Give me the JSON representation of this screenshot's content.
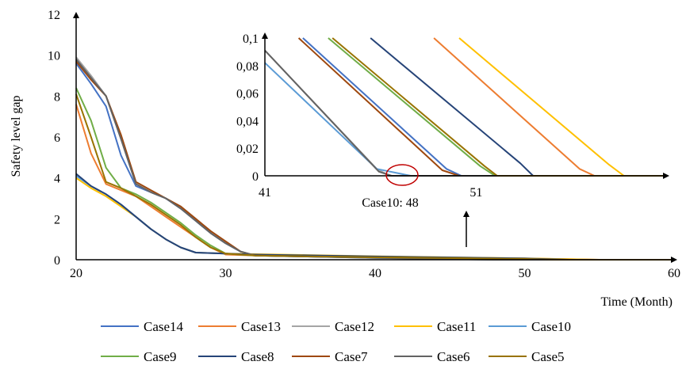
{
  "chart_data": [
    {
      "type": "line",
      "xlabel": "Time (Month)",
      "ylabel": "Safety level gap",
      "xlim": [
        20,
        60
      ],
      "ylim": [
        0,
        12
      ],
      "x_ticks": [
        "20",
        "30",
        "40",
        "50",
        "60"
      ],
      "y_ticks": [
        "0",
        "2",
        "4",
        "6",
        "8",
        "10",
        "12"
      ],
      "legend_position": "bottom",
      "series": [
        {
          "name": "Case14",
          "color": "#4472C4",
          "points": [
            [
              20,
              9.6
            ],
            [
              21,
              8.6
            ],
            [
              22,
              7.5
            ],
            [
              23,
              5.1
            ],
            [
              24,
              3.6
            ],
            [
              25,
              3.3
            ],
            [
              26,
              3.0
            ],
            [
              27,
              2.5
            ],
            [
              28,
              1.9
            ],
            [
              29,
              1.3
            ],
            [
              30,
              0.8
            ],
            [
              31,
              0.4
            ],
            [
              32,
              0.2
            ],
            [
              40,
              0.12
            ],
            [
              50,
              0.04
            ],
            [
              53,
              0
            ],
            [
              60,
              0
            ]
          ]
        },
        {
          "name": "Case13",
          "color": "#ED7D31",
          "points": [
            [
              20,
              7.6
            ],
            [
              21,
              5.2
            ],
            [
              22,
              3.7
            ],
            [
              23,
              3.4
            ],
            [
              24,
              3.1
            ],
            [
              25,
              2.6
            ],
            [
              26,
              2.1
            ],
            [
              27,
              1.6
            ],
            [
              28,
              1.1
            ],
            [
              29,
              0.6
            ],
            [
              30,
              0.25
            ],
            [
              32,
              0.2
            ],
            [
              40,
              0.14
            ],
            [
              50,
              0.06
            ],
            [
              55,
              0
            ],
            [
              60,
              0
            ]
          ]
        },
        {
          "name": "Case12",
          "color": "#A5A5A5",
          "points": [
            [
              20,
              9.9
            ],
            [
              21,
              9.0
            ],
            [
              22,
              8.0
            ],
            [
              23,
              5.9
            ],
            [
              24,
              3.7
            ],
            [
              25,
              3.3
            ],
            [
              26,
              3.0
            ],
            [
              27,
              2.6
            ],
            [
              28,
              2.0
            ],
            [
              29,
              1.4
            ],
            [
              30,
              0.9
            ],
            [
              31,
              0.4
            ],
            [
              32,
              0.2
            ],
            [
              40,
              0.1
            ],
            [
              50,
              0.03
            ],
            [
              52,
              0
            ],
            [
              60,
              0
            ]
          ]
        },
        {
          "name": "Case11",
          "color": "#FFC000",
          "points": [
            [
              20,
              4.0
            ],
            [
              21,
              3.5
            ],
            [
              22,
              3.1
            ],
            [
              23,
              2.6
            ],
            [
              24,
              2.1
            ],
            [
              25,
              1.5
            ],
            [
              26,
              1.0
            ],
            [
              27,
              0.6
            ],
            [
              28,
              0.35
            ],
            [
              30,
              0.3
            ],
            [
              32,
              0.27
            ],
            [
              40,
              0.17
            ],
            [
              50,
              0.07
            ],
            [
              55,
              0
            ],
            [
              60,
              0
            ]
          ]
        },
        {
          "name": "Case10",
          "color": "#5B9BD5",
          "points": [
            [
              20,
              4.1
            ],
            [
              21,
              3.6
            ],
            [
              22,
              3.2
            ],
            [
              23,
              2.7
            ],
            [
              24,
              2.1
            ],
            [
              25,
              1.5
            ],
            [
              26,
              1.0
            ],
            [
              27,
              0.6
            ],
            [
              28,
              0.35
            ],
            [
              30,
              0.3
            ],
            [
              32,
              0.2
            ],
            [
              40,
              0.09
            ],
            [
              48,
              0
            ],
            [
              60,
              0
            ]
          ]
        },
        {
          "name": "Case9",
          "color": "#70AD47",
          "points": [
            [
              20,
              8.4
            ],
            [
              21,
              6.8
            ],
            [
              22,
              4.5
            ],
            [
              23,
              3.5
            ],
            [
              24,
              3.2
            ],
            [
              25,
              2.8
            ],
            [
              26,
              2.3
            ],
            [
              27,
              1.8
            ],
            [
              28,
              1.2
            ],
            [
              29,
              0.7
            ],
            [
              30,
              0.3
            ],
            [
              32,
              0.2
            ],
            [
              40,
              0.12
            ],
            [
              50,
              0.04
            ],
            [
              52,
              0
            ],
            [
              60,
              0
            ]
          ]
        },
        {
          "name": "Case8",
          "color": "#264478",
          "points": [
            [
              20,
              4.2
            ],
            [
              21,
              3.6
            ],
            [
              22,
              3.2
            ],
            [
              23,
              2.7
            ],
            [
              24,
              2.1
            ],
            [
              25,
              1.5
            ],
            [
              26,
              1.0
            ],
            [
              27,
              0.6
            ],
            [
              28,
              0.35
            ],
            [
              30,
              0.3
            ],
            [
              32,
              0.25
            ],
            [
              40,
              0.16
            ],
            [
              50,
              0.06
            ],
            [
              53,
              0
            ],
            [
              60,
              0
            ]
          ]
        },
        {
          "name": "Case7",
          "color": "#9E480E",
          "points": [
            [
              20,
              9.7
            ],
            [
              21,
              8.8
            ],
            [
              22,
              8.0
            ],
            [
              23,
              6.1
            ],
            [
              24,
              3.8
            ],
            [
              25,
              3.4
            ],
            [
              26,
              3.0
            ],
            [
              27,
              2.6
            ],
            [
              28,
              2.0
            ],
            [
              29,
              1.4
            ],
            [
              30,
              0.9
            ],
            [
              31,
              0.4
            ],
            [
              32,
              0.2
            ],
            [
              40,
              0.1
            ],
            [
              50,
              0.03
            ],
            [
              52,
              0
            ],
            [
              60,
              0
            ]
          ]
        },
        {
          "name": "Case6",
          "color": "#636363",
          "points": [
            [
              20,
              9.8
            ],
            [
              21,
              8.9
            ],
            [
              22,
              8.0
            ],
            [
              23,
              5.9
            ],
            [
              24,
              3.7
            ],
            [
              25,
              3.3
            ],
            [
              26,
              3.0
            ],
            [
              27,
              2.5
            ],
            [
              28,
              1.9
            ],
            [
              29,
              1.3
            ],
            [
              30,
              0.8
            ],
            [
              31,
              0.4
            ],
            [
              32,
              0.2
            ],
            [
              40,
              0.09
            ],
            [
              48,
              0
            ],
            [
              60,
              0
            ]
          ]
        },
        {
          "name": "Case5",
          "color": "#997300",
          "points": [
            [
              20,
              8.1
            ],
            [
              21,
              6.0
            ],
            [
              22,
              3.8
            ],
            [
              23,
              3.5
            ],
            [
              24,
              3.1
            ],
            [
              25,
              2.7
            ],
            [
              26,
              2.2
            ],
            [
              27,
              1.7
            ],
            [
              28,
              1.1
            ],
            [
              29,
              0.6
            ],
            [
              30,
              0.3
            ],
            [
              32,
              0.2
            ],
            [
              40,
              0.12
            ],
            [
              50,
              0.04
            ],
            [
              52,
              0
            ],
            [
              60,
              0
            ]
          ]
        }
      ]
    },
    {
      "type": "line",
      "role": "inset",
      "xlim": [
        41,
        60
      ],
      "ylim": [
        0,
        0.1
      ],
      "x_ticks": [
        "41",
        "51"
      ],
      "y_ticks": [
        "0",
        "0,02",
        "0,04",
        "0,06",
        "0,08",
        "0,1"
      ],
      "annotation": "Case10: 48",
      "series": [
        {
          "name": "Case14",
          "color": "#4472C4",
          "points": [
            [
              42.8,
              0.1
            ],
            [
              49.6,
              0.005
            ],
            [
              50.3,
              0
            ],
            [
              60,
              0
            ]
          ]
        },
        {
          "name": "Case13",
          "color": "#ED7D31",
          "points": [
            [
              49.0,
              0.1
            ],
            [
              55.9,
              0.005
            ],
            [
              56.6,
              0
            ],
            [
              60,
              0
            ]
          ]
        },
        {
          "name": "Case12",
          "color": "#A5A5A5",
          "points": [
            [
              41,
              0.091
            ],
            [
              46.3,
              0.005
            ],
            [
              46.9,
              0
            ],
            [
              60,
              0
            ]
          ]
        },
        {
          "name": "Case11",
          "color": "#FFC000",
          "points": [
            [
              50.2,
              0.1
            ],
            [
              57.3,
              0.008
            ],
            [
              58.0,
              0
            ],
            [
              60,
              0
            ]
          ]
        },
        {
          "name": "Case10",
          "color": "#5B9BD5",
          "points": [
            [
              41,
              0.082
            ],
            [
              46.3,
              0.005
            ],
            [
              47.9,
              0
            ],
            [
              60,
              0
            ]
          ]
        },
        {
          "name": "Case9",
          "color": "#70AD47",
          "points": [
            [
              44.0,
              0.1
            ],
            [
              51.2,
              0.007
            ],
            [
              51.9,
              0
            ],
            [
              60,
              0
            ]
          ]
        },
        {
          "name": "Case8",
          "color": "#264478",
          "points": [
            [
              46.0,
              0.1
            ],
            [
              53.1,
              0.009
            ],
            [
              53.7,
              0
            ],
            [
              60,
              0
            ]
          ]
        },
        {
          "name": "Case7",
          "color": "#9E480E",
          "points": [
            [
              42.6,
              0.1
            ],
            [
              49.4,
              0.004
            ],
            [
              50.2,
              0
            ],
            [
              60,
              0
            ]
          ]
        },
        {
          "name": "Case6",
          "color": "#636363",
          "points": [
            [
              41,
              0.091
            ],
            [
              46.4,
              0.003
            ],
            [
              47.0,
              0
            ],
            [
              60,
              0
            ]
          ]
        },
        {
          "name": "Case5",
          "color": "#997300",
          "points": [
            [
              44.2,
              0.1
            ],
            [
              51.4,
              0.007
            ],
            [
              52.0,
              0
            ],
            [
              60,
              0
            ]
          ]
        }
      ]
    }
  ]
}
